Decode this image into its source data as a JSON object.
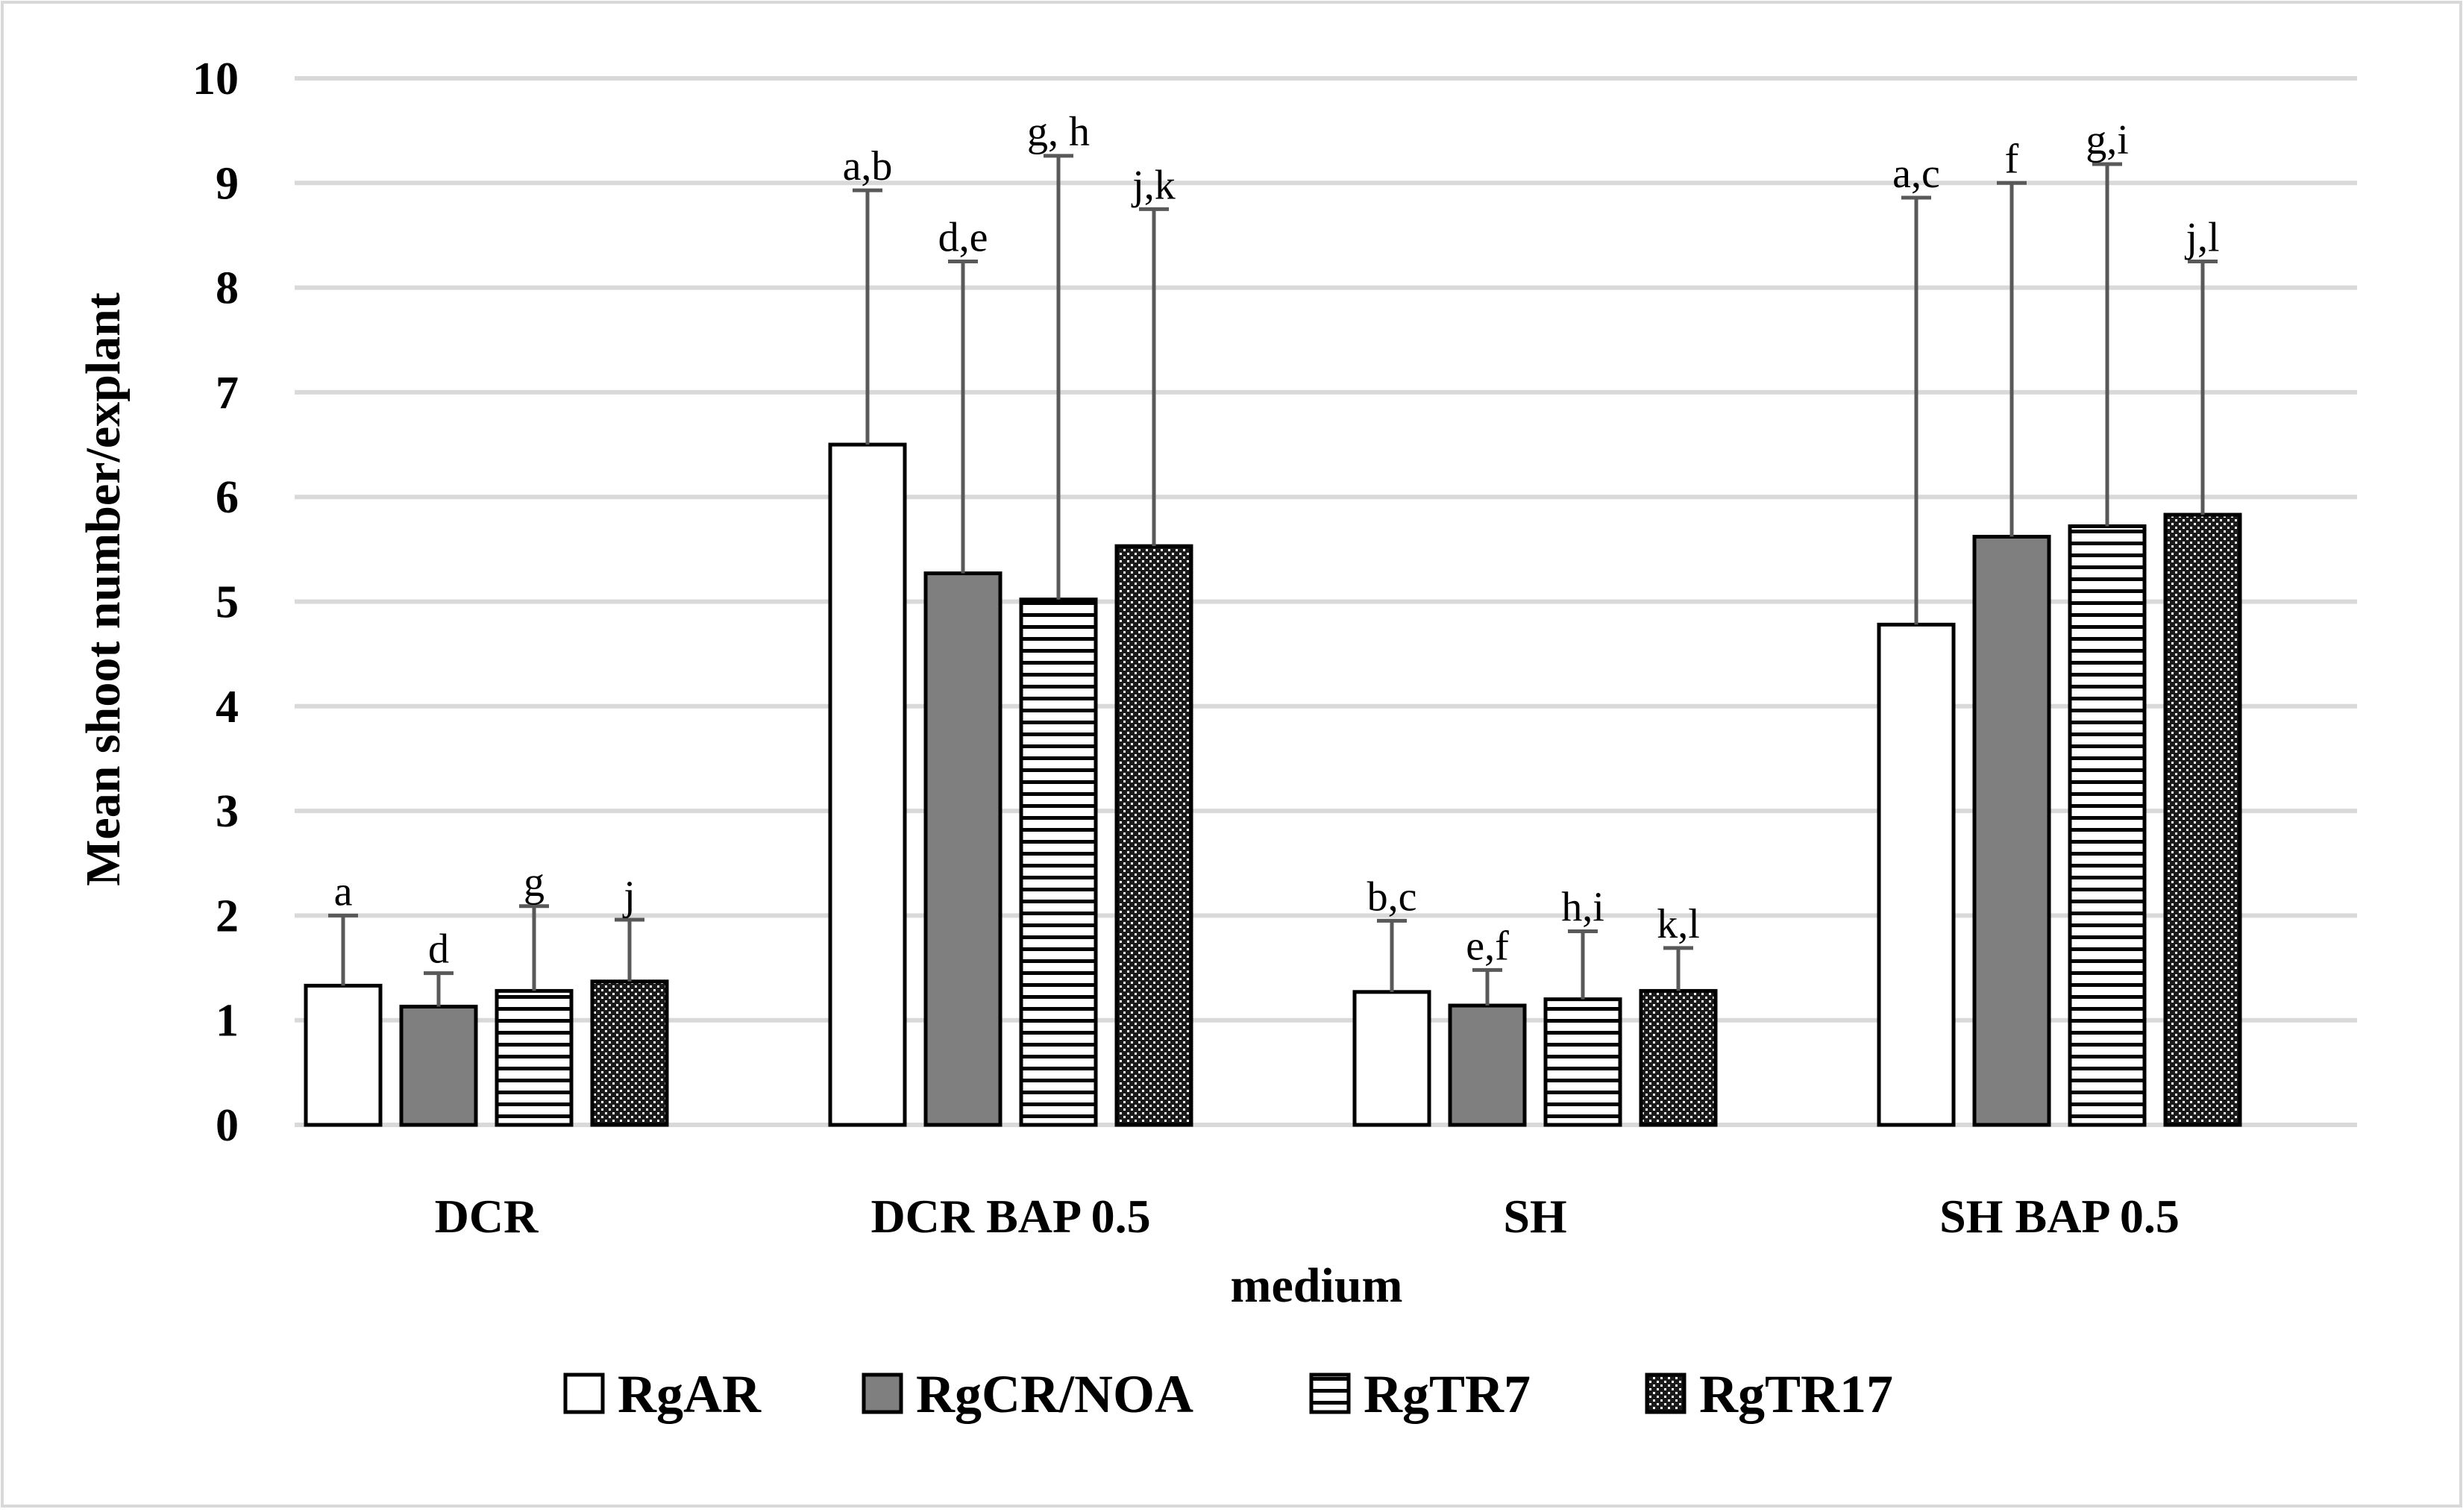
{
  "chart_data": {
    "type": "bar",
    "title": "",
    "xlabel": "medium",
    "ylabel": "Mean shoot number/explant",
    "ylim": [
      0,
      10
    ],
    "yticks": [
      "0",
      "1",
      "2",
      "3",
      "4",
      "5",
      "6",
      "7",
      "8",
      "9",
      "10"
    ],
    "grid": true,
    "legend_position": "bottom",
    "categories": [
      "DCR",
      "DCR BAP 0.5",
      "SH",
      "SH BAP 0.5"
    ],
    "series": [
      {
        "name": "RgAR",
        "pattern": "white",
        "values": [
          1.33,
          6.5,
          1.27,
          4.78
        ],
        "error_upper": [
          2.0,
          8.93,
          1.95,
          8.86
        ],
        "labels": [
          "a",
          "a,b",
          "b,c",
          "a,c"
        ]
      },
      {
        "name": "RgCR/NOA",
        "pattern": "gray",
        "values": [
          1.13,
          5.27,
          1.14,
          5.62
        ],
        "error_upper": [
          1.45,
          8.25,
          1.48,
          9.0
        ],
        "labels": [
          "d",
          "d,e",
          "e,f",
          "f"
        ]
      },
      {
        "name": "RgTR7",
        "pattern": "horizontal-lines",
        "values": [
          1.28,
          5.02,
          1.2,
          5.72
        ],
        "error_upper": [
          2.09,
          9.26,
          1.85,
          9.18
        ],
        "labels": [
          "g",
          "g, h",
          "h,i",
          "g,i"
        ]
      },
      {
        "name": "RgTR17",
        "pattern": "dots",
        "values": [
          1.37,
          5.53,
          1.28,
          5.83
        ],
        "error_upper": [
          1.96,
          8.75,
          1.69,
          8.25
        ],
        "labels": [
          "j",
          "j,k",
          "k,l",
          "j,l"
        ]
      }
    ],
    "colors": {
      "white": "#ffffff",
      "gray": "#7f7f7f",
      "grid": "#d9d9d9",
      "error": "#595959",
      "border": "#d9d9d9"
    }
  }
}
